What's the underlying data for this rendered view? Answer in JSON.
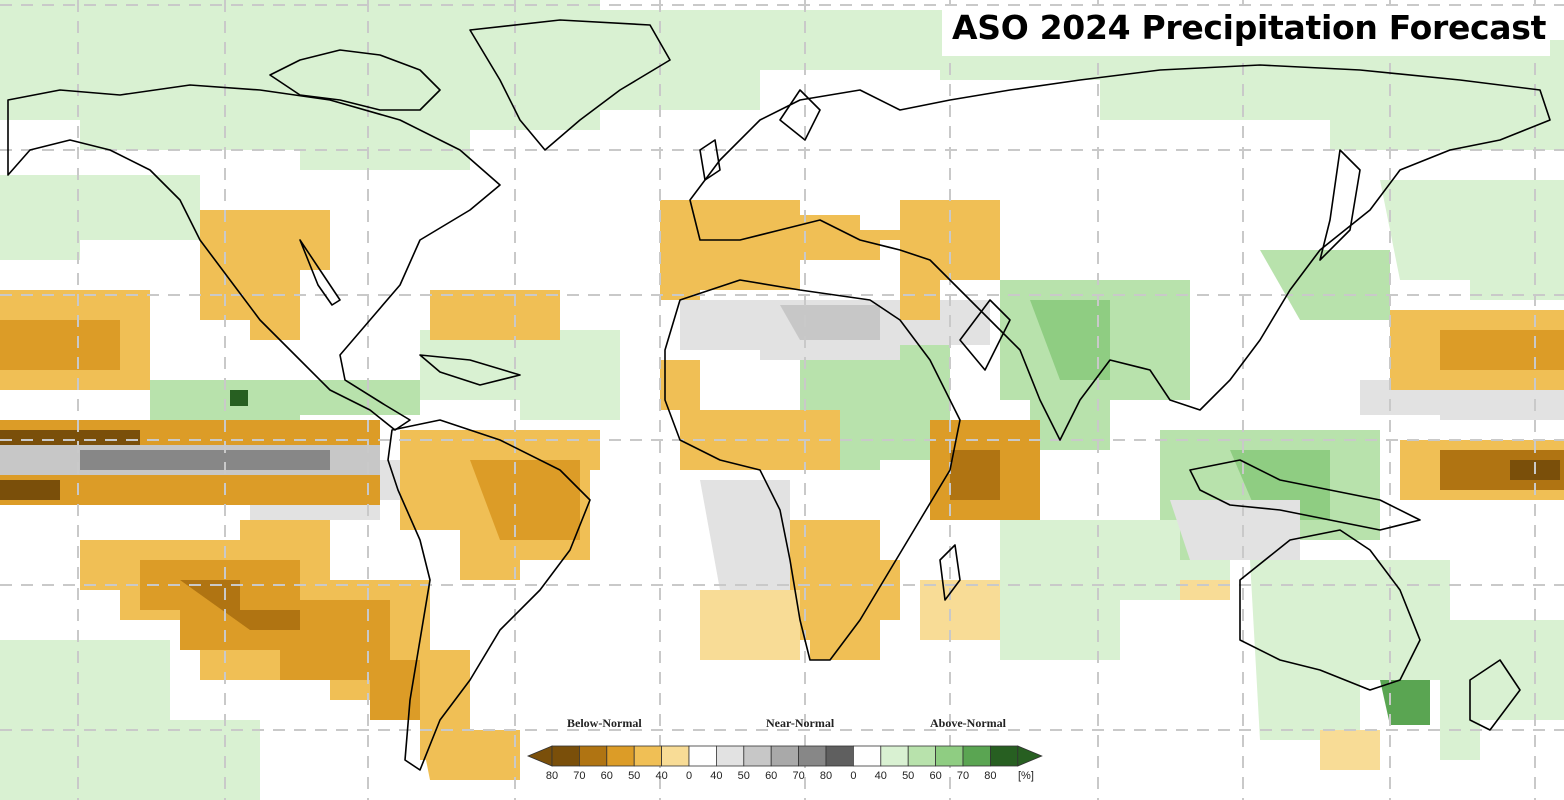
{
  "map": {
    "title": "ASO 2024 Precipitation Forecast",
    "colors": {
      "background": "#ffffff",
      "below_normal": [
        "#7a4f0a",
        "#b07412",
        "#dc9c27",
        "#f0bf55",
        "#f8dc96"
      ],
      "near_normal": [
        "#e2e2e2",
        "#c7c7c7",
        "#a9a9a9",
        "#878787",
        "#5f5f5f"
      ],
      "above_normal": [
        "#d9f1d2",
        "#b8e2ac",
        "#8fcd82",
        "#5aa552",
        "#275f21"
      ],
      "coastline": "#000000",
      "gridline": "#c9c9c9"
    },
    "patterns": [
      {
        "category": "below_normal",
        "level": 50,
        "region": "North Pacific off Baja California"
      },
      {
        "category": "below_normal",
        "level": 70,
        "region": "Central equatorial Pacific"
      },
      {
        "category": "near_normal",
        "level": 70,
        "region": "Central equatorial Pacific"
      },
      {
        "category": "below_normal",
        "level": 60,
        "region": "Southeast Pacific"
      },
      {
        "category": "below_normal",
        "level": 60,
        "region": "Northern South America"
      },
      {
        "category": "below_normal",
        "level": 50,
        "region": "Mediterranean"
      },
      {
        "category": "near_normal",
        "level": 50,
        "region": "Sahara and Arabia"
      },
      {
        "category": "above_normal",
        "level": 50,
        "region": "Sahel"
      },
      {
        "category": "above_normal",
        "level": 50,
        "region": "India and South Asia"
      },
      {
        "category": "below_normal",
        "level": 60,
        "region": "Western Indian Ocean"
      },
      {
        "category": "above_normal",
        "level": 50,
        "region": "Maritime Continent"
      },
      {
        "category": "below_normal",
        "level": 70,
        "region": "West Pacific"
      },
      {
        "category": "above_normal",
        "level": 40,
        "region": "Eastern Australia"
      }
    ]
  },
  "legend": {
    "categories": [
      "Below-Normal",
      "Near-Normal",
      "Above-Normal"
    ],
    "ticks": [
      "80",
      "70",
      "60",
      "50",
      "40",
      "0",
      "40",
      "50",
      "60",
      "70",
      "80",
      "0",
      "40",
      "50",
      "60",
      "70",
      "80"
    ],
    "units": "[%]"
  }
}
